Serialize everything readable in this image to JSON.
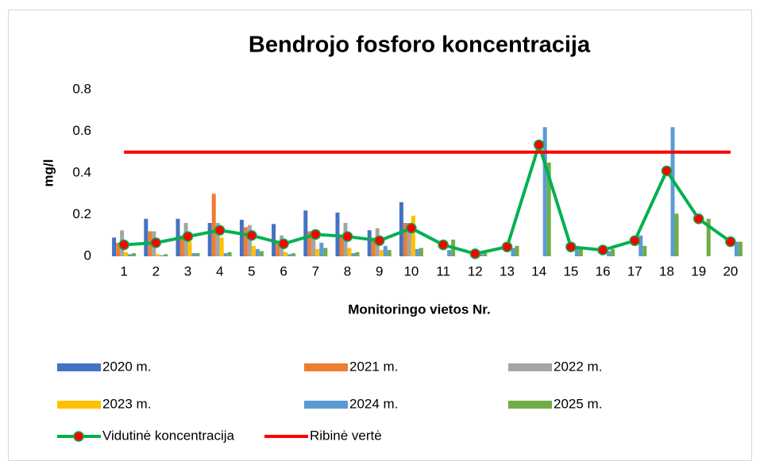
{
  "chart_data": {
    "type": "bar",
    "title": "Bendrojo fosforo koncentracija",
    "x_label": "Monitoringo vietos Nr.",
    "y_label": "mg/l",
    "categories": [
      "1",
      "2",
      "3",
      "4",
      "5",
      "6",
      "7",
      "8",
      "9",
      "10",
      "11",
      "12",
      "13",
      "14",
      "15",
      "16",
      "17",
      "18",
      "19",
      "20"
    ],
    "ylim": [
      0,
      0.8
    ],
    "yticks": [
      0,
      0.2,
      0.4,
      0.6,
      0.8
    ],
    "grid": false,
    "legend": "bottom",
    "series": [
      {
        "name": "2020 m.",
        "type": "bar",
        "color": "#4472c4",
        "values": [
          0.09,
          0.18,
          0.18,
          0.16,
          0.175,
          0.155,
          0.22,
          0.21,
          0.125,
          0.26,
          null,
          null,
          null,
          null,
          null,
          null,
          null,
          null,
          null,
          null
        ]
      },
      {
        "name": "2021 m.",
        "type": "bar",
        "color": "#ed7d31",
        "values": [
          0.065,
          0.12,
          0.1,
          0.3,
          0.14,
          0.075,
          0.12,
          0.1,
          0.09,
          0.16,
          null,
          null,
          null,
          null,
          null,
          null,
          null,
          null,
          null,
          null
        ]
      },
      {
        "name": "2022 m.",
        "type": "bar",
        "color": "#a5a5a5",
        "values": [
          0.125,
          0.12,
          0.16,
          0.16,
          0.15,
          0.1,
          0.12,
          0.16,
          0.135,
          0.16,
          null,
          null,
          null,
          null,
          null,
          null,
          null,
          null,
          null,
          null
        ]
      },
      {
        "name": "2023 m.",
        "type": "bar",
        "color": "#ffc000",
        "values": [
          0.02,
          0.01,
          0.07,
          0.09,
          0.05,
          0.02,
          0.035,
          0.04,
          0.03,
          0.195,
          null,
          null,
          null,
          null,
          null,
          null,
          null,
          null,
          null,
          null
        ]
      },
      {
        "name": "2024 m.",
        "type": "bar",
        "color": "#5b9bd5",
        "values": [
          0.01,
          0.005,
          0.015,
          0.015,
          0.035,
          0.01,
          0.065,
          0.015,
          0.05,
          0.035,
          0.03,
          0.01,
          0.04,
          0.62,
          0.04,
          0.025,
          0.1,
          0.62,
          null,
          0.07
        ]
      },
      {
        "name": "2025 m.",
        "type": "bar",
        "color": "#70ad47",
        "values": [
          0.015,
          0.01,
          0.015,
          0.02,
          0.025,
          0.015,
          0.04,
          0.02,
          0.03,
          0.04,
          0.08,
          0.015,
          0.05,
          0.45,
          0.035,
          0.035,
          0.05,
          0.205,
          0.18,
          0.07
        ]
      },
      {
        "name": "Vidutinė koncentracija",
        "type": "line",
        "color": "#00b050",
        "marker_color": "#ff0000",
        "values": [
          0.055,
          0.065,
          0.095,
          0.125,
          0.1,
          0.06,
          0.105,
          0.095,
          0.075,
          0.135,
          0.055,
          0.012,
          0.045,
          0.535,
          0.045,
          0.03,
          0.075,
          0.41,
          0.18,
          0.07
        ]
      },
      {
        "name": "Ribinė vertė",
        "type": "line",
        "color": "#ff0000",
        "values": [
          0.5,
          0.5,
          0.5,
          0.5,
          0.5,
          0.5,
          0.5,
          0.5,
          0.5,
          0.5,
          0.5,
          0.5,
          0.5,
          0.5,
          0.5,
          0.5,
          0.5,
          0.5,
          0.5,
          0.5
        ]
      }
    ]
  }
}
